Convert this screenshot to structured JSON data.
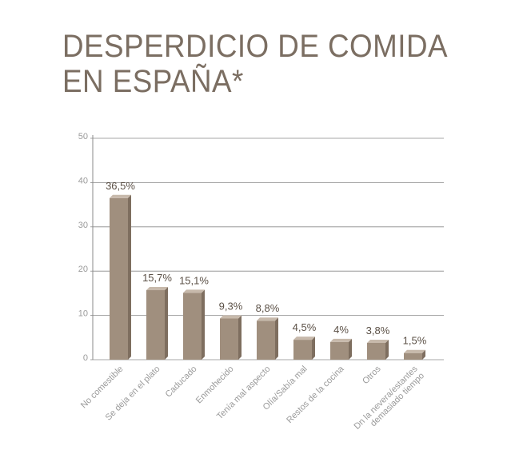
{
  "title": {
    "line1": "DESPERDICIO DE COMIDA",
    "line2": "EN ESPAÑA*"
  },
  "colors": {
    "title": "#7b6e62",
    "bar_front": "#a08f7e",
    "bar_side": "#7e6e5f",
    "bar_top": "#c7b9ab",
    "grid": "#8a8a8a",
    "labels": "#9a9a9a",
    "values": "#5b5046"
  },
  "chart_data": {
    "type": "bar",
    "title": "DESPERDICIO DE COMIDA EN ESPAÑA*",
    "categories": [
      "No comestible",
      "Se deja en el plato",
      "Caducado",
      "Enmohecido",
      "Tenía mal aspecto",
      "Olía/Sabía mal",
      "Restos de la cocina",
      "Otros",
      "Dn la nevera/estantes demasiado tiempo"
    ],
    "values": [
      36.5,
      15.7,
      15.1,
      9.3,
      8.8,
      4.5,
      4,
      3.8,
      1.5
    ],
    "value_labels": [
      "36,5%",
      "15,7%",
      "15,1%",
      "9,3%",
      "8,8%",
      "4,5%",
      "4%",
      "3,8%",
      "1,5%"
    ],
    "category_labels": [
      [
        "No comestible"
      ],
      [
        "Se deja en el plato"
      ],
      [
        "Caducado"
      ],
      [
        "Enmohecido"
      ],
      [
        "Tenía mal aspecto"
      ],
      [
        "Olía/Sabía mal"
      ],
      [
        "Restos de la cocina"
      ],
      [
        "Otros"
      ],
      [
        "Dn la nevera/estantes",
        "demasiado tiempo"
      ]
    ],
    "ylim": [
      0,
      50
    ],
    "yticks": [
      0,
      10,
      20,
      30,
      40,
      50
    ],
    "grid": true,
    "xlabel": "",
    "ylabel": ""
  }
}
